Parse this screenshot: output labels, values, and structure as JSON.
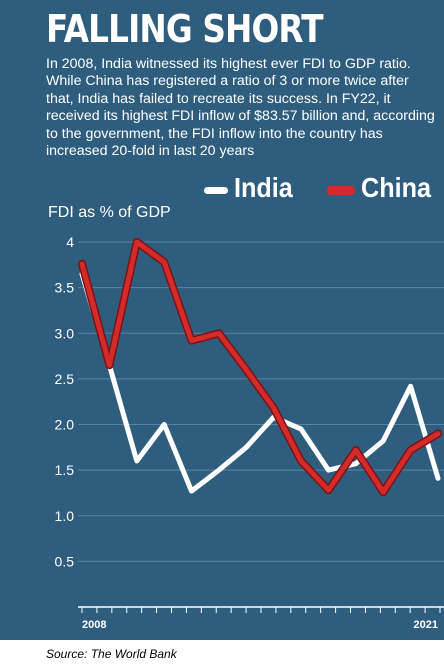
{
  "title": "FALLING SHORT",
  "subtitle": "In 2008, India witnessed its highest ever FDI to GDP ratio. While China has registered a ratio of 3 or more twice after that, India has failed to recreate its success. In FY22, it received its highest FDI inflow of $83.57 billion and, according to the government, the FDI inflow into the country has increased 20-fold in last 20 years",
  "source": "Source: The World Bank",
  "colors": {
    "background": "#2f5d7e",
    "india": "#ffffff",
    "china": "#d42a2a"
  },
  "chart_data": {
    "type": "line",
    "title": "FALLING SHORT",
    "ylabel": "FDI as % of GDP",
    "xlabel": "",
    "x": [
      2008,
      2009,
      2010,
      2011,
      2012,
      2013,
      2014,
      2015,
      2016,
      2017,
      2018,
      2019,
      2020,
      2021
    ],
    "x_tick_labels": [
      "2008",
      "2021"
    ],
    "y_tick_labels": [
      "4",
      "3.5",
      "3.0",
      "2.5",
      "2.0",
      "1.5",
      "1.0",
      "0.5"
    ],
    "y_ticks": [
      4,
      3.5,
      3.0,
      2.5,
      2.0,
      1.5,
      1.0,
      0.5
    ],
    "ylim": [
      0,
      4
    ],
    "grid": "horizontal",
    "legend": "top-right",
    "series": [
      {
        "name": "India",
        "values": [
          3.65,
          2.65,
          1.6,
          2.0,
          1.27,
          1.5,
          1.75,
          2.08,
          1.95,
          1.5,
          1.57,
          1.82,
          2.42,
          1.41
        ]
      },
      {
        "name": "China",
        "values": [
          3.76,
          2.65,
          4.0,
          3.78,
          2.92,
          3.0,
          2.6,
          2.18,
          1.6,
          1.28,
          1.72,
          1.26,
          1.72,
          1.9
        ]
      }
    ]
  }
}
